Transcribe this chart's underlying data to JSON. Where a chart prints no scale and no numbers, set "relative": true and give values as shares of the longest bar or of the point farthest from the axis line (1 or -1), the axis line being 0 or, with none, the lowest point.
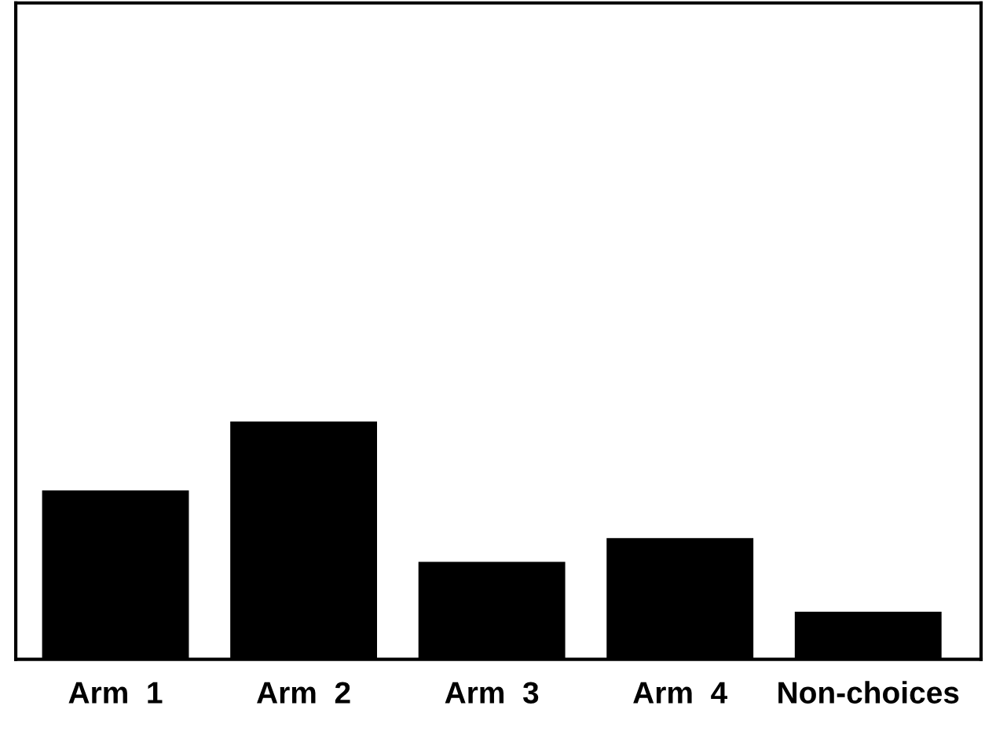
{
  "chart_data": {
    "type": "bar",
    "relative": true,
    "categories": [
      "Arm  1",
      "Arm  2",
      "Arm  3",
      "Arm  4",
      "Non-choices"
    ],
    "values": [
      0.71,
      1,
      0.41,
      0.51,
      0.2
    ],
    "color": "#000000",
    "grid": false,
    "legend": false
  }
}
